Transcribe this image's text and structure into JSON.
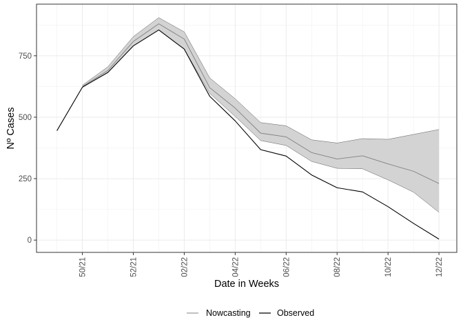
{
  "chart_data": {
    "type": "line",
    "title": "",
    "xlabel": "Date in Weeks",
    "ylabel": "Nº Cases",
    "x": [
      0,
      1,
      2,
      3,
      4,
      5,
      6,
      7,
      8,
      9,
      10,
      11,
      12,
      13,
      14,
      15
    ],
    "xlim": [
      -0.8,
      15.7
    ],
    "ylim": [
      -50,
      960
    ],
    "x_ticks": [
      {
        "x": 1,
        "label": "50/21"
      },
      {
        "x": 3,
        "label": "52/21"
      },
      {
        "x": 5,
        "label": "02/22"
      },
      {
        "x": 7,
        "label": "04/22"
      },
      {
        "x": 9,
        "label": "06/22"
      },
      {
        "x": 11,
        "label": "08/22"
      },
      {
        "x": 13,
        "label": "10/22"
      },
      {
        "x": 15,
        "label": "12/22"
      }
    ],
    "y_ticks": [
      {
        "y": 0,
        "label": "0"
      },
      {
        "y": 250,
        "label": "250"
      },
      {
        "y": 500,
        "label": "500"
      },
      {
        "y": 750,
        "label": "750"
      }
    ],
    "series": [
      {
        "name": "Observed",
        "color": "#000000",
        "x": [
          0,
          1,
          2,
          3,
          4,
          5,
          6,
          7,
          8,
          9,
          10,
          11,
          12,
          13,
          14,
          15
        ],
        "values": [
          445,
          622,
          682,
          790,
          855,
          777,
          585,
          485,
          368,
          342,
          265,
          213,
          196,
          136,
          68,
          4
        ]
      },
      {
        "name": "Nowcasting",
        "color": "#808080",
        "x": [
          1,
          2,
          3,
          4,
          5,
          6,
          7,
          8,
          9,
          10,
          11,
          12,
          13,
          14,
          15
        ],
        "values": [
          625,
          690,
          808,
          880,
          818,
          620,
          537,
          435,
          420,
          356,
          330,
          343,
          310,
          280,
          230
        ]
      }
    ],
    "band": {
      "name": "Nowcasting interval",
      "fill": "#d3d3d3",
      "x": [
        1,
        2,
        3,
        4,
        5,
        6,
        7,
        8,
        9,
        10,
        11,
        12,
        13,
        14,
        15
      ],
      "lower": [
        622,
        682,
        790,
        855,
        777,
        597,
        503,
        405,
        385,
        320,
        292,
        290,
        245,
        195,
        113
      ],
      "upper": [
        630,
        705,
        828,
        905,
        847,
        660,
        575,
        478,
        465,
        408,
        395,
        413,
        410,
        430,
        450
      ]
    },
    "grid": true,
    "legend": {
      "position": "bottom",
      "entries": [
        "Nowcasting",
        "Observed"
      ]
    }
  }
}
